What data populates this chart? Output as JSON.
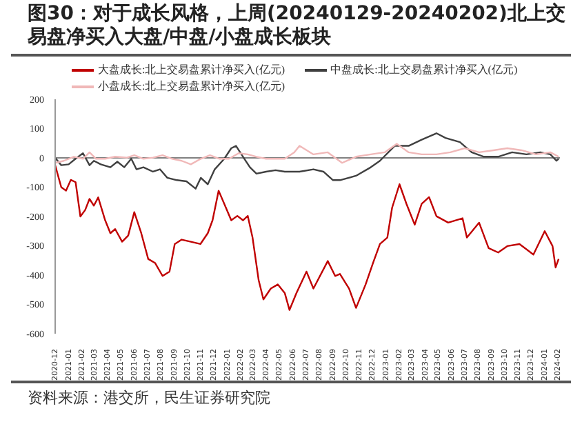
{
  "chart_data": {
    "type": "line",
    "title": "图30：对于成长风格，上周(20240129-20240202)北上交易盘净买入大盘/中盘/小盘成长板块",
    "annotations": [
      "资料来源：港交所，民生证券研究院"
    ],
    "series": [
      {
        "name": "大盘成长:北上交易盘累计净买入(亿元)",
        "color": "#c00000",
        "x": [
          "2020-12-01",
          "2020-12-15",
          "2020-12-26",
          "2021-01-06",
          "2021-01-17",
          "2021-01-28",
          "2021-02-08",
          "2021-02-18",
          "2021-02-28",
          "2021-03-10",
          "2021-03-26",
          "2021-04-07",
          "2021-04-18",
          "2021-05-04",
          "2021-05-18",
          "2021-06-01",
          "2021-06-17",
          "2021-07-03",
          "2021-07-19",
          "2021-08-05",
          "2021-08-21",
          "2021-09-02",
          "2021-09-18",
          "2021-10-09",
          "2021-10-31",
          "2021-11-17",
          "2021-11-28",
          "2021-12-12",
          "2021-12-25",
          "2022-01-10",
          "2022-01-24",
          "2022-02-06",
          "2022-02-17",
          "2022-02-28",
          "2022-03-14",
          "2022-03-25",
          "2022-04-11",
          "2022-04-27",
          "2022-05-13",
          "2022-05-24",
          "2022-06-09",
          "2022-07-02",
          "2022-07-18",
          "2022-08-20",
          "2022-09-06",
          "2022-09-17",
          "2022-10-08",
          "2022-10-24",
          "2022-11-15",
          "2022-12-02",
          "2022-12-18",
          "2023-01-04",
          "2023-01-15",
          "2023-02-01",
          "2023-02-17",
          "2023-03-08",
          "2023-03-24",
          "2023-04-10",
          "2023-04-27",
          "2023-05-24",
          "2023-06-26",
          "2023-07-06",
          "2023-08-03",
          "2023-08-25",
          "2023-09-16",
          "2023-10-07",
          "2023-11-04",
          "2023-12-06",
          "2024-01-01",
          "2024-01-19",
          "2024-01-26",
          "2024-02-02"
        ],
        "values": [
          -25,
          -100,
          -112,
          -75,
          -83,
          -200,
          -178,
          -140,
          -163,
          -135,
          -213,
          -257,
          -243,
          -286,
          -265,
          -185,
          -257,
          -345,
          -359,
          -403,
          -388,
          -294,
          -279,
          -286,
          -294,
          -257,
          -213,
          -112,
          -157,
          -213,
          -198,
          -213,
          -198,
          -272,
          -417,
          -483,
          -446,
          -432,
          -461,
          -519,
          -461,
          -388,
          -446,
          -352,
          -403,
          -396,
          -446,
          -512,
          -432,
          -359,
          -294,
          -272,
          -170,
          -90,
          -157,
          -228,
          -157,
          -134,
          -199,
          -221,
          -206,
          -272,
          -221,
          -308,
          -323,
          -301,
          -294,
          -330,
          -250,
          -301,
          -374,
          -345
        ]
      },
      {
        "name": "中盘成长:北上交易盘累计净买入(亿元)",
        "color": "#404040",
        "x": [
          "2020-12-01",
          "2020-12-15",
          "2021-01-01",
          "2021-01-17",
          "2021-02-03",
          "2021-02-18",
          "2021-02-28",
          "2021-03-16",
          "2021-04-07",
          "2021-04-23",
          "2021-05-09",
          "2021-05-25",
          "2021-06-06",
          "2021-06-22",
          "2021-07-14",
          "2021-07-30",
          "2021-08-16",
          "2021-09-07",
          "2021-09-29",
          "2021-10-20",
          "2021-11-01",
          "2021-11-17",
          "2021-12-03",
          "2021-12-25",
          "2022-01-10",
          "2022-01-21",
          "2022-02-06",
          "2022-02-22",
          "2022-03-09",
          "2022-03-31",
          "2022-04-22",
          "2022-05-13",
          "2022-06-09",
          "2022-06-16",
          "2022-07-18",
          "2022-08-10",
          "2022-09-01",
          "2022-09-17",
          "2022-10-24",
          "2022-11-27",
          "2022-12-18",
          "2023-01-21",
          "2023-02-22",
          "2023-03-24",
          "2023-04-27",
          "2023-05-18",
          "2023-06-20",
          "2023-07-17",
          "2023-08-14",
          "2023-09-16",
          "2023-10-18",
          "2023-11-20",
          "2023-12-22",
          "2024-01-14",
          "2024-01-28",
          "2024-02-02"
        ],
        "values": [
          0,
          -25,
          -22,
          -3,
          16,
          -25,
          -10,
          -22,
          -32,
          -13,
          -32,
          -3,
          -39,
          -32,
          -47,
          -39,
          -68,
          -76,
          -80,
          -105,
          -68,
          -90,
          -39,
          -3,
          33,
          41,
          4,
          -32,
          -54,
          -47,
          -42,
          -47,
          -47,
          -47,
          -39,
          -47,
          -76,
          -76,
          -61,
          -32,
          -10,
          41,
          41,
          62,
          84,
          68,
          54,
          19,
          4,
          4,
          19,
          12,
          19,
          12,
          -10,
          -3
        ]
      },
      {
        "name": "小盘成长:北上交易盘累计净买入(亿元)",
        "color": "#f0b8b8",
        "x": [
          "2020-12-01",
          "2020-12-21",
          "2021-01-13",
          "2021-02-03",
          "2021-02-18",
          "2021-03-05",
          "2021-03-26",
          "2021-04-18",
          "2021-05-15",
          "2021-06-01",
          "2021-06-22",
          "2021-07-14",
          "2021-08-05",
          "2021-08-27",
          "2021-09-18",
          "2021-10-09",
          "2021-11-01",
          "2021-11-22",
          "2021-12-14",
          "2022-01-05",
          "2022-01-27",
          "2022-02-17",
          "2022-03-09",
          "2022-03-31",
          "2022-04-22",
          "2022-05-13",
          "2022-06-04",
          "2022-06-16",
          "2022-07-18",
          "2022-08-20",
          "2022-09-22",
          "2022-10-24",
          "2022-11-27",
          "2022-12-29",
          "2023-01-26",
          "2023-02-22",
          "2023-03-24",
          "2023-04-27",
          "2023-05-29",
          "2023-07-01",
          "2023-08-03",
          "2023-09-05",
          "2023-10-07",
          "2023-11-09",
          "2023-12-12",
          "2024-01-14",
          "2024-02-02"
        ],
        "values": [
          -17,
          -10,
          4,
          -3,
          19,
          -3,
          -3,
          4,
          1,
          9,
          -3,
          1,
          9,
          -3,
          -10,
          -22,
          -3,
          9,
          -3,
          -3,
          16,
          12,
          4,
          -3,
          -3,
          -3,
          19,
          41,
          12,
          19,
          -17,
          4,
          12,
          19,
          48,
          19,
          12,
          12,
          19,
          33,
          19,
          26,
          33,
          26,
          12,
          19,
          4
        ]
      }
    ],
    "ylim": [
      -600,
      200
    ],
    "yticks": [
      -600,
      -500,
      -400,
      -300,
      -200,
      -100,
      0,
      100,
      200
    ],
    "xlim": [
      "2020-12-01",
      "2024-02-05"
    ],
    "xticks": [
      "2020-12",
      "2021-01",
      "2021-02",
      "2021-03",
      "2021-04",
      "2021-05",
      "2021-06",
      "2021-07",
      "2021-08",
      "2021-09",
      "2021-10",
      "2021-11",
      "2021-12",
      "2022-01",
      "2022-02",
      "2022-03",
      "2022-04",
      "2022-05",
      "2022-06",
      "2022-07",
      "2022-08",
      "2022-09",
      "2022-10",
      "2022-11",
      "2022-12",
      "2023-01",
      "2023-02",
      "2023-03",
      "2023-04",
      "2023-05",
      "2023-06",
      "2023-07",
      "2023-08",
      "2023-09",
      "2023-10",
      "2023-11",
      "2023-12",
      "2024-01",
      "2024-02"
    ],
    "ref_lines": [
      {
        "axis": "y",
        "value": 0,
        "color": "#808080"
      }
    ],
    "grid": false,
    "legend": "top",
    "marker": "none",
    "line_style": "solid"
  }
}
